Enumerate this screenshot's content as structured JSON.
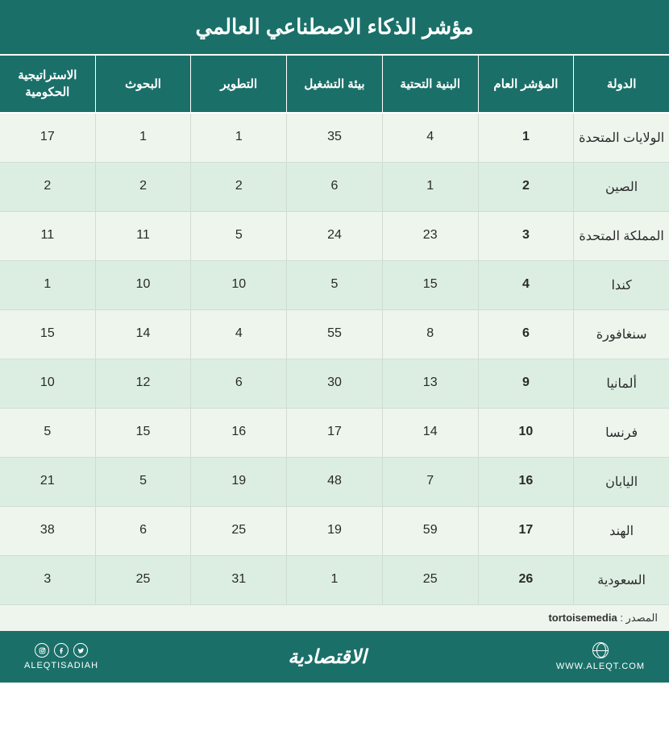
{
  "title": "مؤشر الذكاء الاصطناعي العالمي",
  "type": "table",
  "colors": {
    "header_bg": "#1a7069",
    "header_text": "#ffffff",
    "row_odd_bg": "#edf5ed",
    "row_even_bg": "#dceee2",
    "cell_text": "#2a2a2a",
    "border": "#d0dcd5",
    "footer_bg": "#1a7069"
  },
  "typography": {
    "title_fontsize": 26,
    "header_fontsize": 15,
    "cell_fontsize": 16,
    "footer_brand_fontsize": 24,
    "source_fontsize": 13
  },
  "columns": [
    {
      "key": "country",
      "label": "الدولة",
      "bold": false
    },
    {
      "key": "overall",
      "label": "المؤشر العام",
      "bold": true
    },
    {
      "key": "infra",
      "label": "البنية التحتية",
      "bold": false
    },
    {
      "key": "operating",
      "label": "بيئة التشغيل",
      "bold": false
    },
    {
      "key": "development",
      "label": "التطوير",
      "bold": false
    },
    {
      "key": "research",
      "label": "البحوث",
      "bold": false
    },
    {
      "key": "gov_strategy",
      "label": "الاستراتيجية الحكومية",
      "bold": false
    }
  ],
  "rows": [
    {
      "country": "الولايات المتحدة",
      "overall": "1",
      "infra": "4",
      "operating": "35",
      "development": "1",
      "research": "1",
      "gov_strategy": "17"
    },
    {
      "country": "الصين",
      "overall": "2",
      "infra": "1",
      "operating": "6",
      "development": "2",
      "research": "2",
      "gov_strategy": "2"
    },
    {
      "country": "المملكة المتحدة",
      "overall": "3",
      "infra": "23",
      "operating": "24",
      "development": "5",
      "research": "11",
      "gov_strategy": "11"
    },
    {
      "country": "كندا",
      "overall": "4",
      "infra": "15",
      "operating": "5",
      "development": "10",
      "research": "10",
      "gov_strategy": "1"
    },
    {
      "country": "سنغافورة",
      "overall": "6",
      "infra": "8",
      "operating": "55",
      "development": "4",
      "research": "14",
      "gov_strategy": "15"
    },
    {
      "country": "ألمانيا",
      "overall": "9",
      "infra": "13",
      "operating": "30",
      "development": "6",
      "research": "12",
      "gov_strategy": "10"
    },
    {
      "country": "فرنسا",
      "overall": "10",
      "infra": "14",
      "operating": "17",
      "development": "16",
      "research": "15",
      "gov_strategy": "5"
    },
    {
      "country": "اليابان",
      "overall": "16",
      "infra": "7",
      "operating": "48",
      "development": "19",
      "research": "5",
      "gov_strategy": "21"
    },
    {
      "country": "الهند",
      "overall": "17",
      "infra": "59",
      "operating": "19",
      "development": "25",
      "research": "6",
      "gov_strategy": "38"
    },
    {
      "country": "السعودية",
      "overall": "26",
      "infra": "25",
      "operating": "1",
      "development": "31",
      "research": "25",
      "gov_strategy": "3"
    }
  ],
  "source": {
    "label": "المصدر :",
    "value": "tortoisemedia"
  },
  "footer": {
    "brand_ar": "الاقتصادية",
    "social_handle": "ALEQTISADIAH",
    "website": "WWW.ALEQT.COM"
  }
}
